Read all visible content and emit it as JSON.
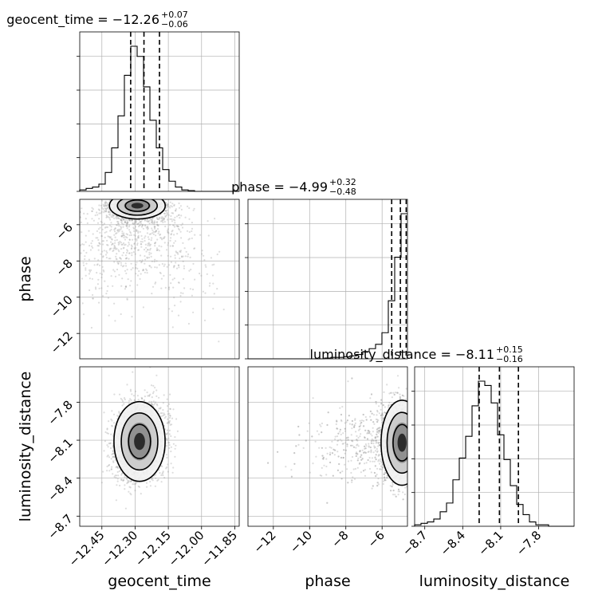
{
  "chart_data": {
    "type": "scatter",
    "plot_kind": "corner",
    "parameters": [
      "geocent_time",
      "phase",
      "luminosity_distance"
    ],
    "titles": [
      {
        "param": "geocent_time",
        "label": "geocent_time = −12.26",
        "sup": "+0.07",
        "sub": "−0.06"
      },
      {
        "param": "phase",
        "label": "phase = −4.99",
        "sup": "+0.32",
        "sub": "−0.48"
      },
      {
        "param": "luminosity_distance",
        "label": "luminosity_distance = −8.11",
        "sup": "+0.15",
        "sub": "−0.16"
      }
    ],
    "xlabels": [
      "geocent_time",
      "phase",
      "luminosity_distance"
    ],
    "ylabels": [
      "phase",
      "luminosity_distance"
    ],
    "ranges": {
      "geocent_time": [
        -12.55,
        -11.83
      ],
      "phase": [
        -13.4,
        -4.6
      ],
      "luminosity_distance": [
        -8.78,
        -7.52
      ]
    },
    "ticks": {
      "geocent_time": [
        "−12.45",
        "−12.30",
        "−12.15",
        "−12.00",
        "−11.85"
      ],
      "phase_x": [
        "−12",
        "−10",
        "−8",
        "−6"
      ],
      "phase_y": [
        "−6",
        "−8",
        "−10",
        "−12"
      ],
      "luminosity_distance": [
        "−8.7",
        "−8.4",
        "−8.1",
        "−7.8"
      ]
    },
    "tick_values": {
      "geocent_time": [
        -12.45,
        -12.3,
        -12.15,
        -12.0,
        -11.85
      ],
      "phase_x": [
        -12,
        -10,
        -8,
        -6
      ],
      "phase_y": [
        -6,
        -8,
        -10,
        -12
      ],
      "luminosity_distance": [
        -8.7,
        -8.4,
        -8.1,
        -7.8
      ]
    },
    "quantiles": {
      "geocent_time": [
        -12.32,
        -12.26,
        -12.19
      ],
      "phase": [
        -5.47,
        -4.99,
        -4.67
      ],
      "luminosity_distance": [
        -8.27,
        -8.11,
        -7.96
      ]
    },
    "histograms": {
      "geocent_time": {
        "edges_start": -12.55,
        "bin_width": 0.0288,
        "counts": [
          0.01,
          0.02,
          0.03,
          0.05,
          0.13,
          0.3,
          0.52,
          0.8,
          1.0,
          0.93,
          0.72,
          0.49,
          0.3,
          0.15,
          0.07,
          0.03,
          0.01,
          0.005,
          0,
          0,
          0,
          0,
          0,
          0,
          0
        ]
      },
      "phase": {
        "edges_start": -13.4,
        "bin_width": 0.352,
        "counts": [
          0,
          0,
          0,
          0,
          0,
          0,
          0,
          0,
          0,
          0,
          0,
          0,
          0.005,
          0.01,
          0.01,
          0.015,
          0.02,
          0.03,
          0.05,
          0.07,
          0.1,
          0.18,
          0.4,
          0.7,
          1.0
        ]
      },
      "luminosity_distance": {
        "edges_start": -8.78,
        "bin_width": 0.0504,
        "counts": [
          0.01,
          0.02,
          0.03,
          0.05,
          0.1,
          0.16,
          0.32,
          0.47,
          0.62,
          0.83,
          1.0,
          0.97,
          0.85,
          0.63,
          0.46,
          0.28,
          0.15,
          0.08,
          0.03,
          0.01,
          0.01,
          0,
          0,
          0,
          0
        ]
      }
    },
    "grid": true,
    "colors": {
      "line": "#000000",
      "points": "#9e9e9e",
      "grid": "#b0b0b0"
    }
  }
}
